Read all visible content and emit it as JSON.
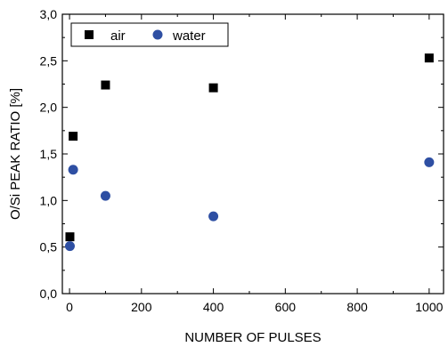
{
  "chart_data": {
    "type": "scatter",
    "title": "",
    "xlabel": "NUMBER OF PULSES",
    "ylabel": "O/Si PEAK RATIO [%]",
    "xlim": [
      -20,
      1040
    ],
    "ylim": [
      0,
      3.0
    ],
    "x_ticks": [
      0,
      200,
      400,
      600,
      800,
      1000
    ],
    "x_tick_labels": [
      "0",
      "200",
      "400",
      "600",
      "800",
      "1000"
    ],
    "y_ticks": [
      0,
      0.5,
      1.0,
      1.5,
      2.0,
      2.5,
      3.0
    ],
    "y_tick_labels": [
      "0,0",
      "0,5",
      "1,0",
      "1,5",
      "2,0",
      "2,5",
      "3,0"
    ],
    "grid": false,
    "legend_position": "top-left",
    "series": [
      {
        "name": "air",
        "marker": "square",
        "color": "#000000",
        "points": [
          {
            "x": 1,
            "y": 0.61
          },
          {
            "x": 10,
            "y": 1.69
          },
          {
            "x": 100,
            "y": 2.24
          },
          {
            "x": 400,
            "y": 2.21
          },
          {
            "x": 1000,
            "y": 2.53
          }
        ]
      },
      {
        "name": "water",
        "marker": "circle",
        "color": "#2e4fa3",
        "points": [
          {
            "x": 1,
            "y": 0.51
          },
          {
            "x": 10,
            "y": 1.33
          },
          {
            "x": 100,
            "y": 1.05
          },
          {
            "x": 400,
            "y": 0.83
          },
          {
            "x": 1000,
            "y": 1.41
          }
        ]
      }
    ]
  }
}
